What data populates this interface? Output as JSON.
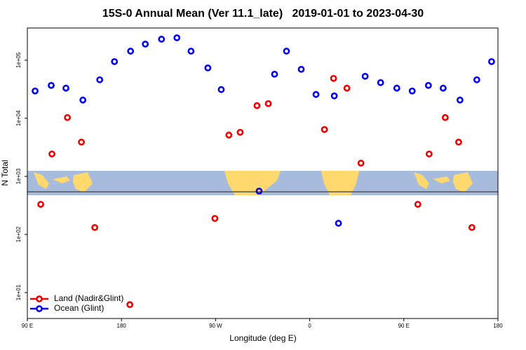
{
  "chart_data": {
    "type": "scatter",
    "title": "15S-0 Annual Mean (Ver 11.1_late)   2019-01-01 to 2023-04-30",
    "x_label": "Longitude (deg E)",
    "y_label": "N Total",
    "xlim": [
      90,
      540
    ],
    "xticks": [
      {
        "value": 90,
        "label": "90 E"
      },
      180,
      {
        "value": 270,
        "label": "90 W"
      },
      {
        "value": 360,
        "label": "0"
      },
      {
        "value": 450,
        "label": "90 E"
      },
      {
        "value": 540,
        "label": "180"
      }
    ],
    "ylim": [
      3.58,
      358000
    ],
    "yscale": "log",
    "yticks": [
      {
        "value": 10,
        "label": "1e+01"
      },
      {
        "value": 100,
        "label": "1e+02"
      },
      {
        "value": 1000,
        "label": "1e+03"
      },
      {
        "value": 10000,
        "label": "1e+04"
      },
      {
        "value": 100000,
        "label": "1e+05"
      }
    ],
    "legend": "lower left",
    "series": [
      {
        "name": "Land (Nadir&Glint)",
        "color": "#ee0000",
        "x": [
          102.8,
          113.5,
          128.3,
          141.7,
          154.5,
          188,
          269.3,
          282.7,
          293.5,
          309.6,
          320.4,
          374.1,
          382.8,
          395.6,
          409,
          463.4,
          474.2,
          489.6,
          502.4,
          515.1
        ],
        "values": [
          330,
          2430,
          10300,
          3890,
          132,
          6.2,
          189,
          5140,
          5740,
          16500,
          17900,
          6410,
          48600,
          33000,
          1690,
          330,
          2430,
          10300,
          3890,
          132
        ]
      },
      {
        "name": "Ocean (Glint)",
        "color": "#0000ee",
        "x": [
          97.4,
          112.8,
          126.9,
          143.1,
          159.2,
          173.3,
          188.7,
          202.8,
          218.3,
          233,
          246.5,
          262.6,
          275.4,
          311.6,
          326.4,
          337.8,
          351.9,
          366,
          383.5,
          387.5,
          413,
          427.8,
          443.3,
          458,
          473.5,
          487.6,
          503.7,
          519.8,
          533.9
        ],
        "values": [
          29500,
          36800,
          33000,
          20600,
          46000,
          94600,
          143000,
          189000,
          230000,
          243000,
          143000,
          73600,
          31200,
          558,
          57400,
          143000,
          69600,
          25700,
          24300,
          156,
          52800,
          41100,
          33000,
          29500,
          36800,
          33000,
          20600,
          46000,
          94600
        ]
      }
    ]
  }
}
